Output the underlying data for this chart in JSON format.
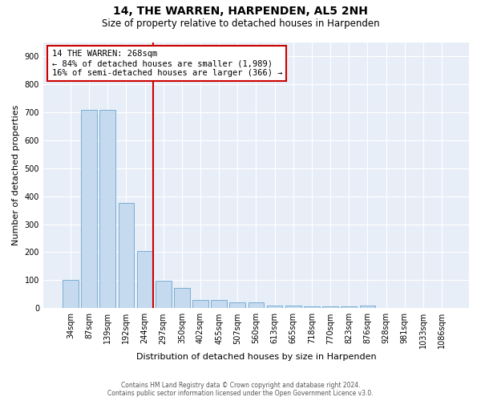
{
  "title1": "14, THE WARREN, HARPENDEN, AL5 2NH",
  "title2": "Size of property relative to detached houses in Harpenden",
  "xlabel": "Distribution of detached houses by size in Harpenden",
  "ylabel": "Number of detached properties",
  "categories": [
    "34sqm",
    "87sqm",
    "139sqm",
    "192sqm",
    "244sqm",
    "297sqm",
    "350sqm",
    "402sqm",
    "455sqm",
    "507sqm",
    "560sqm",
    "613sqm",
    "665sqm",
    "718sqm",
    "770sqm",
    "823sqm",
    "876sqm",
    "928sqm",
    "981sqm",
    "1033sqm",
    "1086sqm"
  ],
  "values": [
    100,
    707,
    707,
    375,
    205,
    97,
    72,
    30,
    30,
    22,
    20,
    10,
    10,
    8,
    8,
    8,
    10,
    0,
    0,
    0,
    0
  ],
  "bar_color": "#c5d9ef",
  "bar_edge_color": "#7bafd4",
  "property_label": "14 THE WARREN: 268sqm",
  "annotation_line1": "← 84% of detached houses are smaller (1,989)",
  "annotation_line2": "16% of semi-detached houses are larger (366) →",
  "vline_color": "#cc0000",
  "vline_x_index": 4.45,
  "ylim": [
    0,
    950
  ],
  "yticks": [
    0,
    100,
    200,
    300,
    400,
    500,
    600,
    700,
    800,
    900
  ],
  "footer_line1": "Contains HM Land Registry data © Crown copyright and database right 2024.",
  "footer_line2": "Contains public sector information licensed under the Open Government Licence v3.0.",
  "background_color": "#e8eef7"
}
